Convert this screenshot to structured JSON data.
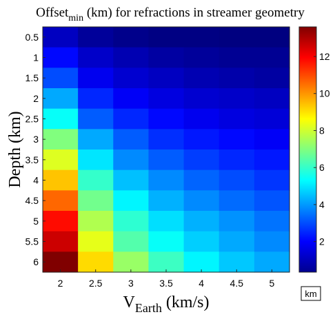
{
  "chart_data": {
    "type": "heatmap",
    "title": {
      "main": "Offset",
      "sub": "min",
      "rest": " (km) for refractions in streamer geometry"
    },
    "xlabel": {
      "main": "V",
      "sub": "Earth",
      "rest": " (km/s)"
    },
    "ylabel": "Depth (km)",
    "x": [
      2,
      2.5,
      3,
      3.5,
      4,
      4.5,
      5
    ],
    "x_tick_labels": [
      "2",
      "2.5",
      "3",
      "3.5",
      "4",
      "4.5",
      "5"
    ],
    "y": [
      0.5,
      1,
      1.5,
      2,
      2.5,
      3,
      3.5,
      4,
      4.5,
      5,
      5.5,
      6
    ],
    "y_tick_labels": [
      "0.5",
      "1",
      "1.5",
      "2",
      "2.5",
      "3",
      "3.5",
      "4",
      "4.5",
      "5",
      "5.5",
      "6"
    ],
    "values": [
      [
        1.2,
        0.7,
        0.5,
        0.4,
        0.4,
        0.35,
        0.3
      ],
      [
        2.1,
        1.3,
        1.0,
        0.8,
        0.7,
        0.6,
        0.6
      ],
      [
        3.0,
        1.8,
        1.4,
        1.2,
        1.0,
        0.9,
        0.8
      ],
      [
        4.2,
        2.5,
        1.9,
        1.6,
        1.4,
        1.3,
        1.2
      ],
      [
        5.4,
        3.2,
        2.5,
        2.1,
        1.8,
        1.6,
        1.5
      ],
      [
        7.0,
        4.2,
        3.2,
        2.6,
        2.3,
        2.1,
        1.9
      ],
      [
        8.2,
        5.0,
        3.8,
        3.2,
        2.8,
        2.5,
        2.3
      ],
      [
        9.4,
        6.0,
        4.5,
        3.8,
        3.3,
        3.0,
        2.7
      ],
      [
        10.6,
        6.8,
        5.2,
        4.3,
        3.8,
        3.4,
        3.1
      ],
      [
        11.8,
        7.6,
        5.9,
        4.9,
        4.3,
        3.9,
        3.5
      ],
      [
        12.6,
        8.3,
        6.4,
        5.4,
        4.7,
        4.2,
        3.8
      ],
      [
        13.6,
        9.1,
        7.3,
        6.1,
        5.2,
        4.6,
        4.2
      ]
    ],
    "colorbar": {
      "colormap": "jet",
      "range": [
        0.35,
        13.6
      ],
      "ticks": [
        2,
        4,
        6,
        8,
        10,
        12
      ],
      "tick_labels": [
        "2",
        "4",
        "6",
        "8",
        "10",
        "12"
      ],
      "unit_label": "km"
    }
  }
}
